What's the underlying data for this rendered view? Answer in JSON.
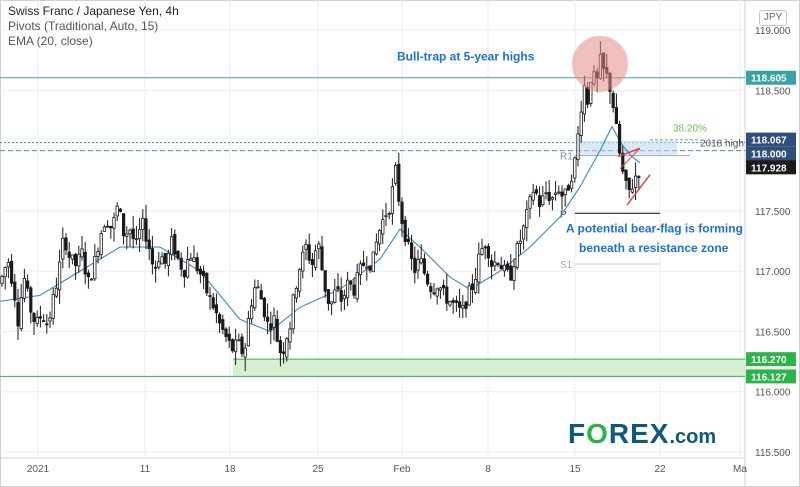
{
  "legend": {
    "title": "Swiss Franc / Japanese Yen, 4h",
    "pivots": "Pivots (Traditional, Auto, 15)",
    "ema": "EMA (20, close)"
  },
  "currency_badge": "JPY",
  "logo": {
    "f": "F",
    "o": "O",
    "rex": "REX",
    "dom": ".com"
  },
  "colors": {
    "candle": "#1a1a1a",
    "ema": "#4a90c9",
    "grid": "#eeeeee",
    "support_line": "#2db34a",
    "support_zone": "#d6efd3",
    "resistance_line": "#38a3a3",
    "annotation_text": "#1e6fd9",
    "label_bg": "#1a6c93",
    "fib": "#6bbf47",
    "flag": "#e04545",
    "highlight_circle": "#e88a8a"
  },
  "chart_data": {
    "type": "candlestick",
    "symbol": "CHFJPY",
    "timeframe": "4h",
    "y_axis": {
      "range": [
        115.45,
        119.25
      ],
      "ticks": [
        "119.000",
        "118.500",
        "118.000",
        "117.500",
        "117.000",
        "116.500",
        "116.000",
        "115.500"
      ],
      "tick_values": [
        119.0,
        118.5,
        118.0,
        117.5,
        117.0,
        116.5,
        116.0,
        115.5
      ]
    },
    "x_axis": {
      "ticks": [
        "2021",
        "11",
        "18",
        "25",
        "Feb",
        "8",
        "15",
        "22",
        "Ma"
      ]
    },
    "price_labels": [
      {
        "value": 118.605,
        "text": "118.605"
      },
      {
        "value": 118.067,
        "text": "118.067"
      },
      {
        "value": 118.0,
        "text": "118.000"
      },
      {
        "value": 117.928,
        "text": "117.928"
      },
      {
        "value": 116.27,
        "text": "116.270"
      },
      {
        "value": 116.127,
        "text": "116.127"
      }
    ],
    "levels": {
      "resistance": 118.605,
      "high_2018": 118.067,
      "round": 118.0,
      "r1": 117.96,
      "pivot": 117.48,
      "s1": 117.06,
      "support_zone": [
        116.127,
        116.27
      ]
    },
    "level_labels": {
      "fib": "38.20%",
      "high_2018": "2018 high",
      "r1": "R1",
      "pivot": "P",
      "s1": "S1"
    },
    "annotations": {
      "bull_trap": "Bull-trap at 5-year highs",
      "bear_flag_line1": "A potential bear-flag is forming",
      "bear_flag_line2": "beneath a resistance zone"
    },
    "path_points": [
      [
        0,
        116.9
      ],
      [
        8,
        117.1
      ],
      [
        14,
        116.85
      ],
      [
        18,
        116.6
      ],
      [
        24,
        116.95
      ],
      [
        30,
        116.7
      ],
      [
        36,
        116.55
      ],
      [
        42,
        116.65
      ],
      [
        48,
        116.55
      ],
      [
        54,
        116.8
      ],
      [
        58,
        116.95
      ],
      [
        64,
        117.3
      ],
      [
        70,
        117.1
      ],
      [
        76,
        117.05
      ],
      [
        82,
        117.15
      ],
      [
        88,
        116.9
      ],
      [
        94,
        117.05
      ],
      [
        100,
        117.3
      ],
      [
        106,
        117.45
      ],
      [
        112,
        117.35
      ],
      [
        118,
        117.55
      ],
      [
        124,
        117.3
      ],
      [
        130,
        117.35
      ],
      [
        136,
        117.2
      ],
      [
        142,
        117.4
      ],
      [
        148,
        117.25
      ],
      [
        154,
        117.0
      ],
      [
        160,
        117.15
      ],
      [
        166,
        117.05
      ],
      [
        172,
        117.25
      ],
      [
        178,
        117.1
      ],
      [
        184,
        117.0
      ],
      [
        190,
        117.15
      ],
      [
        196,
        117.05
      ],
      [
        202,
        116.95
      ],
      [
        208,
        116.8
      ],
      [
        214,
        116.7
      ],
      [
        220,
        116.55
      ],
      [
        226,
        116.45
      ],
      [
        232,
        116.35
      ],
      [
        238,
        116.4
      ],
      [
        244,
        116.3
      ],
      [
        250,
        116.7
      ],
      [
        256,
        116.9
      ],
      [
        262,
        116.75
      ],
      [
        268,
        116.55
      ],
      [
        274,
        116.6
      ],
      [
        278,
        116.4
      ],
      [
        282,
        116.3
      ],
      [
        286,
        116.45
      ],
      [
        290,
        116.55
      ],
      [
        294,
        116.8
      ],
      [
        300,
        117.05
      ],
      [
        306,
        117.2
      ],
      [
        312,
        117.05
      ],
      [
        318,
        117.25
      ],
      [
        324,
        116.9
      ],
      [
        330,
        116.7
      ],
      [
        336,
        116.85
      ],
      [
        342,
        116.75
      ],
      [
        348,
        116.9
      ],
      [
        354,
        116.85
      ],
      [
        360,
        117.0
      ],
      [
        366,
        117.1
      ],
      [
        372,
        117.05
      ],
      [
        378,
        117.3
      ],
      [
        384,
        117.45
      ],
      [
        390,
        117.55
      ],
      [
        396,
        117.85
      ],
      [
        400,
        117.5
      ],
      [
        404,
        117.35
      ],
      [
        408,
        117.2
      ],
      [
        414,
        117.0
      ],
      [
        420,
        117.1
      ],
      [
        426,
        116.95
      ],
      [
        432,
        116.85
      ],
      [
        438,
        116.9
      ],
      [
        444,
        116.8
      ],
      [
        450,
        116.75
      ],
      [
        456,
        116.7
      ],
      [
        462,
        116.65
      ],
      [
        468,
        116.8
      ],
      [
        474,
        116.9
      ],
      [
        480,
        117.15
      ],
      [
        486,
        117.25
      ],
      [
        492,
        117.05
      ],
      [
        498,
        117.1
      ],
      [
        504,
        117.0
      ],
      [
        510,
        116.95
      ],
      [
        516,
        117.15
      ],
      [
        522,
        117.3
      ],
      [
        528,
        117.5
      ],
      [
        534,
        117.7
      ],
      [
        540,
        117.55
      ],
      [
        546,
        117.65
      ],
      [
        552,
        117.6
      ],
      [
        558,
        117.7
      ],
      [
        564,
        117.6
      ],
      [
        570,
        117.75
      ],
      [
        576,
        117.95
      ],
      [
        580,
        118.3
      ],
      [
        584,
        118.55
      ],
      [
        588,
        118.4
      ],
      [
        592,
        118.7
      ],
      [
        596,
        118.5
      ],
      [
        600,
        118.75
      ],
      [
        604,
        118.65
      ],
      [
        608,
        118.6
      ],
      [
        612,
        118.45
      ],
      [
        616,
        118.2
      ],
      [
        620,
        117.95
      ],
      [
        624,
        117.75
      ],
      [
        628,
        117.65
      ],
      [
        632,
        117.7
      ],
      [
        636,
        117.8
      ],
      [
        640,
        117.85
      ]
    ],
    "ema_points": [
      [
        0,
        116.75
      ],
      [
        40,
        116.8
      ],
      [
        80,
        117.0
      ],
      [
        120,
        117.2
      ],
      [
        160,
        117.2
      ],
      [
        200,
        117.0
      ],
      [
        240,
        116.6
      ],
      [
        270,
        116.5
      ],
      [
        300,
        116.7
      ],
      [
        340,
        116.85
      ],
      [
        380,
        117.1
      ],
      [
        400,
        117.35
      ],
      [
        420,
        117.2
      ],
      [
        450,
        116.95
      ],
      [
        470,
        116.85
      ],
      [
        500,
        117.0
      ],
      [
        530,
        117.2
      ],
      [
        560,
        117.45
      ],
      [
        580,
        117.7
      ],
      [
        600,
        118.0
      ],
      [
        612,
        118.2
      ],
      [
        622,
        118.05
      ],
      [
        632,
        117.95
      ],
      [
        640,
        117.9
      ]
    ]
  }
}
